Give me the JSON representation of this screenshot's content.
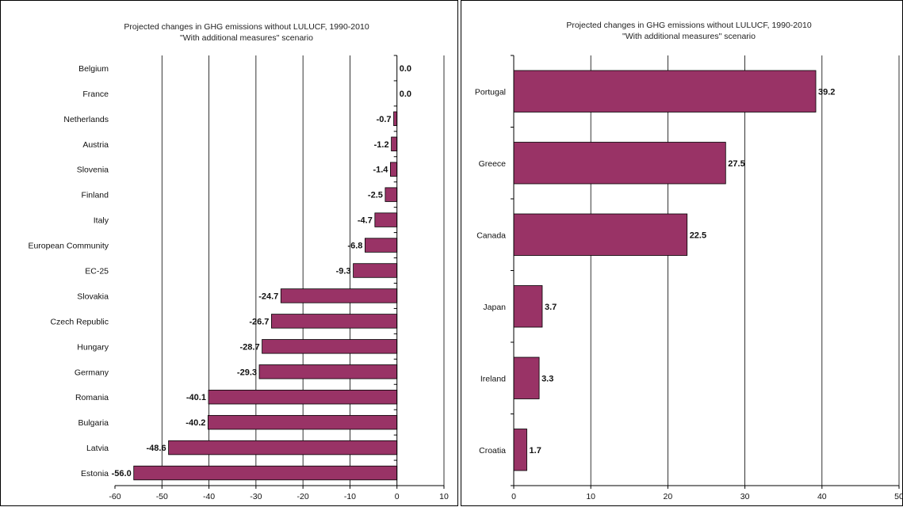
{
  "chart_data": [
    {
      "type": "bar",
      "orientation": "horizontal",
      "title": "Projected changes in GHG emissions without LULUCF, 1990-2010",
      "subtitle": "\"With additional measures\" scenario",
      "xlabel": "",
      "ylabel": "",
      "xlim": [
        -60,
        10
      ],
      "xticks": [
        "-60",
        "-50",
        "-40",
        "-30",
        "-20",
        "-10",
        "0",
        "10"
      ],
      "grid": true,
      "bar_color": "#993366",
      "categories": [
        "Belgium",
        "France",
        "Netherlands",
        "Austria",
        "Slovenia",
        "Finland",
        "Italy",
        "European Community",
        "EC-25",
        "Slovakia",
        "Czech Republic",
        "Hungary",
        "Germany",
        "Romania",
        "Bulgaria",
        "Latvia",
        "Estonia"
      ],
      "values": [
        0.0,
        0.0,
        -0.7,
        -1.2,
        -1.4,
        -2.5,
        -4.7,
        -6.8,
        -9.3,
        -24.7,
        -26.7,
        -28.7,
        -29.3,
        -40.1,
        -40.2,
        -48.6,
        -56.0
      ],
      "value_labels": [
        "0.0",
        "0.0",
        "-0.7",
        "-1.2",
        "-1.4",
        "-2.5",
        "-4.7",
        "-6.8",
        "-9.3",
        "-24.7",
        "-26.7",
        "-28.7",
        "-29.3",
        "-40.1",
        "-40.2",
        "-48.6",
        "-56.0"
      ]
    },
    {
      "type": "bar",
      "orientation": "horizontal",
      "title": "Projected changes in GHG emissions without LULUCF, 1990-2010",
      "subtitle": "\"With additional measures\" scenario",
      "xlabel": "",
      "ylabel": "",
      "xlim": [
        0,
        50
      ],
      "xticks": [
        "0",
        "10",
        "20",
        "30",
        "40",
        "50"
      ],
      "grid": true,
      "bar_color": "#993366",
      "categories": [
        "Portugal",
        "Greece",
        "Canada",
        "Japan",
        "Ireland",
        "Croatia"
      ],
      "values": [
        39.2,
        27.5,
        22.5,
        3.7,
        3.3,
        1.7
      ],
      "value_labels": [
        "39.2",
        "27.5",
        "22.5",
        "3.7",
        "3.3",
        "1.7"
      ]
    }
  ]
}
